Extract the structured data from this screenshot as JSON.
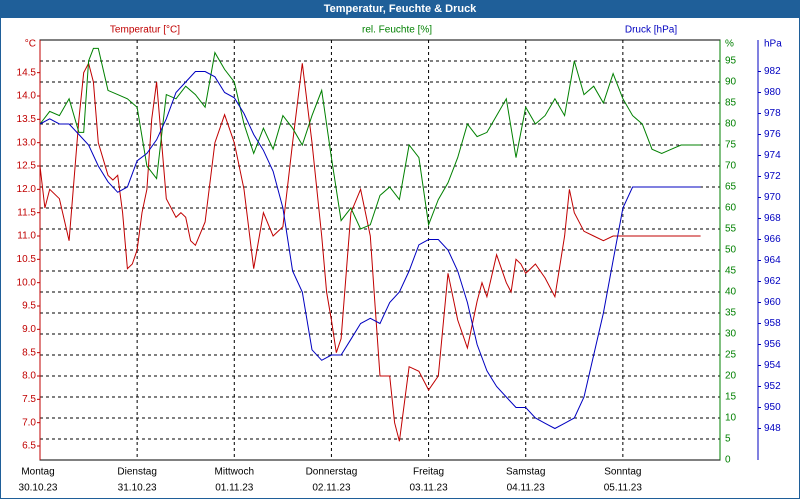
{
  "window": {
    "title": "Temperatur, Feuchte & Druck"
  },
  "colors": {
    "temperature": "#c00000",
    "humidity": "#008000",
    "pressure": "#0000c0",
    "titlebar": "#1f5f99"
  },
  "chart_data": {
    "type": "line",
    "title": "Temperatur, Feuchte & Druck",
    "legend": {
      "temperature": "Temperatur [°C]",
      "humidity": "rel. Feuchte [%]",
      "pressure": "Druck [hPa]"
    },
    "axes": {
      "left": {
        "unit": "°C",
        "min": 6.2,
        "max": 15.2,
        "ticks": [
          "6.5",
          "7.0",
          "7.5",
          "8.0",
          "8.5",
          "9.0",
          "9.5",
          "10.0",
          "10.5",
          "11.0",
          "11.5",
          "12.0",
          "12.5",
          "13.0",
          "13.5",
          "14.0",
          "14.5"
        ]
      },
      "right1": {
        "unit": "%",
        "min": 0,
        "max": 100,
        "ticks": [
          "0",
          "5",
          "10",
          "15",
          "20",
          "25",
          "30",
          "35",
          "40",
          "45",
          "50",
          "55",
          "60",
          "65",
          "70",
          "75",
          "80",
          "85",
          "90",
          "95",
          "%"
        ]
      },
      "right2": {
        "unit": "hPa",
        "min": 945,
        "max": 985,
        "ticks": [
          "948",
          "950",
          "952",
          "954",
          "956",
          "958",
          "960",
          "962",
          "964",
          "966",
          "968",
          "970",
          "972",
          "974",
          "976",
          "978",
          "980",
          "982",
          "hPa"
        ]
      }
    },
    "x_labels": [
      {
        "day": "Montag",
        "date": "30.10.23"
      },
      {
        "day": "Dienstag",
        "date": "31.10.23"
      },
      {
        "day": "Mittwoch",
        "date": "01.11.23"
      },
      {
        "day": "Donnerstag",
        "date": "02.11.23"
      },
      {
        "day": "Freitag",
        "date": "03.11.23"
      },
      {
        "day": "Samstag",
        "date": "04.11.23"
      },
      {
        "day": "Sonntag",
        "date": "05.11.23"
      }
    ],
    "series": [
      {
        "name": "Temperatur [°C]",
        "axis": "left",
        "x": [
          0,
          0.05,
          0.1,
          0.2,
          0.3,
          0.4,
          0.45,
          0.5,
          0.55,
          0.6,
          0.7,
          0.75,
          0.8,
          0.85,
          0.9,
          0.95,
          1.0,
          1.05,
          1.1,
          1.15,
          1.2,
          1.3,
          1.4,
          1.45,
          1.5,
          1.55,
          1.6,
          1.7,
          1.8,
          1.9,
          2.0,
          2.1,
          2.2,
          2.3,
          2.4,
          2.5,
          2.6,
          2.7,
          2.8,
          2.9,
          2.95,
          3.0,
          3.05,
          3.1,
          3.2,
          3.3,
          3.4,
          3.45,
          3.5,
          3.6,
          3.65,
          3.7,
          3.8,
          3.9,
          4.0,
          4.1,
          4.2,
          4.3,
          4.4,
          4.5,
          4.55,
          4.6,
          4.7,
          4.8,
          4.85,
          4.9,
          4.95,
          5.0,
          5.05,
          5.1,
          5.2,
          5.3,
          5.4,
          5.45,
          5.5,
          5.6,
          5.7,
          5.8,
          5.9,
          6.0,
          6.1,
          6.2,
          6.3,
          6.4,
          6.5,
          6.55,
          6.6,
          6.7,
          6.8
        ],
        "values": [
          12.5,
          11.6,
          12.0,
          11.8,
          10.9,
          13.5,
          14.5,
          14.7,
          14.3,
          13.0,
          12.3,
          12.2,
          12.3,
          11.5,
          10.3,
          10.4,
          10.7,
          11.5,
          12.0,
          13.5,
          14.3,
          11.8,
          11.4,
          11.5,
          11.4,
          10.9,
          10.8,
          11.3,
          13.0,
          13.6,
          13.0,
          12.0,
          10.3,
          11.5,
          11.0,
          11.2,
          13.0,
          14.7,
          13.0,
          11.0,
          9.8,
          9.2,
          8.5,
          8.8,
          11.5,
          12.0,
          11.0,
          9.5,
          8.0,
          8.0,
          7.0,
          6.6,
          8.2,
          8.1,
          7.7,
          8.0,
          10.2,
          9.2,
          8.6,
          9.6,
          10.0,
          9.7,
          10.6,
          10.0,
          9.8,
          10.5,
          10.4,
          10.2,
          10.3,
          10.4,
          10.1,
          9.7,
          11.0,
          12.0,
          11.5,
          11.1,
          11.0,
          10.9,
          11.0,
          11.0,
          11.0,
          11.0,
          11.0,
          11.0,
          11.0,
          11.0,
          11.0,
          11.0,
          11.0
        ]
      },
      {
        "name": "rel. Feuchte [%]",
        "axis": "right1",
        "x": [
          0,
          0.1,
          0.2,
          0.3,
          0.35,
          0.4,
          0.45,
          0.5,
          0.55,
          0.6,
          0.7,
          0.8,
          0.9,
          1.0,
          1.1,
          1.2,
          1.3,
          1.4,
          1.5,
          1.6,
          1.7,
          1.8,
          1.9,
          2.0,
          2.1,
          2.2,
          2.3,
          2.4,
          2.5,
          2.6,
          2.7,
          2.8,
          2.9,
          3.0,
          3.1,
          3.2,
          3.3,
          3.4,
          3.5,
          3.6,
          3.7,
          3.8,
          3.9,
          4.0,
          4.1,
          4.2,
          4.3,
          4.4,
          4.5,
          4.6,
          4.7,
          4.8,
          4.9,
          5.0,
          5.1,
          5.2,
          5.3,
          5.4,
          5.5,
          5.6,
          5.7,
          5.8,
          5.9,
          6.0,
          6.1,
          6.2,
          6.3,
          6.4,
          6.5,
          6.6,
          6.7,
          6.8
        ],
        "values": [
          80,
          83,
          82,
          86,
          82,
          78,
          78,
          95,
          98,
          98,
          88,
          87,
          86,
          84,
          70,
          67,
          87,
          86,
          89,
          87,
          84,
          97,
          93,
          90,
          80,
          73,
          79,
          74,
          82,
          79,
          75,
          82,
          88,
          72,
          57,
          60,
          55,
          56,
          63,
          65,
          62,
          75,
          72,
          56,
          62,
          66,
          72,
          80,
          77,
          78,
          82,
          86,
          72,
          84,
          80,
          82,
          86,
          82,
          95,
          87,
          89,
          85,
          92,
          86,
          82,
          80,
          74,
          73,
          74,
          75,
          75,
          75
        ]
      },
      {
        "name": "Druck [hPa]",
        "axis": "right2",
        "x": [
          0,
          0.1,
          0.2,
          0.3,
          0.4,
          0.5,
          0.6,
          0.7,
          0.8,
          0.9,
          1.0,
          1.1,
          1.2,
          1.3,
          1.4,
          1.5,
          1.6,
          1.7,
          1.8,
          1.9,
          2.0,
          2.1,
          2.2,
          2.3,
          2.4,
          2.5,
          2.6,
          2.7,
          2.8,
          2.9,
          3.0,
          3.1,
          3.2,
          3.3,
          3.4,
          3.5,
          3.6,
          3.7,
          3.8,
          3.9,
          4.0,
          4.1,
          4.2,
          4.3,
          4.4,
          4.5,
          4.6,
          4.7,
          4.8,
          4.9,
          5.0,
          5.1,
          5.2,
          5.3,
          5.4,
          5.5,
          5.6,
          5.7,
          5.8,
          5.9,
          6.0,
          6.1,
          6.2,
          6.3,
          6.4,
          6.5,
          6.6,
          6.7,
          6.8
        ],
        "values": [
          977,
          977.5,
          977,
          977,
          976,
          975,
          973,
          971.5,
          970.5,
          971,
          973.5,
          974.2,
          975.5,
          977.5,
          980,
          981,
          982,
          982,
          981.5,
          980,
          979.5,
          978,
          976,
          974.5,
          972.5,
          969,
          963,
          961,
          955.5,
          954.5,
          955,
          955,
          956.5,
          958,
          958.5,
          958,
          960,
          961,
          963,
          965.5,
          966,
          966,
          965,
          963,
          960,
          956,
          953.5,
          952,
          951,
          950,
          950,
          949,
          948.5,
          948,
          948.5,
          949,
          951,
          955,
          959,
          964,
          969,
          971,
          971,
          971,
          971,
          971,
          971,
          971,
          971
        ]
      }
    ]
  }
}
